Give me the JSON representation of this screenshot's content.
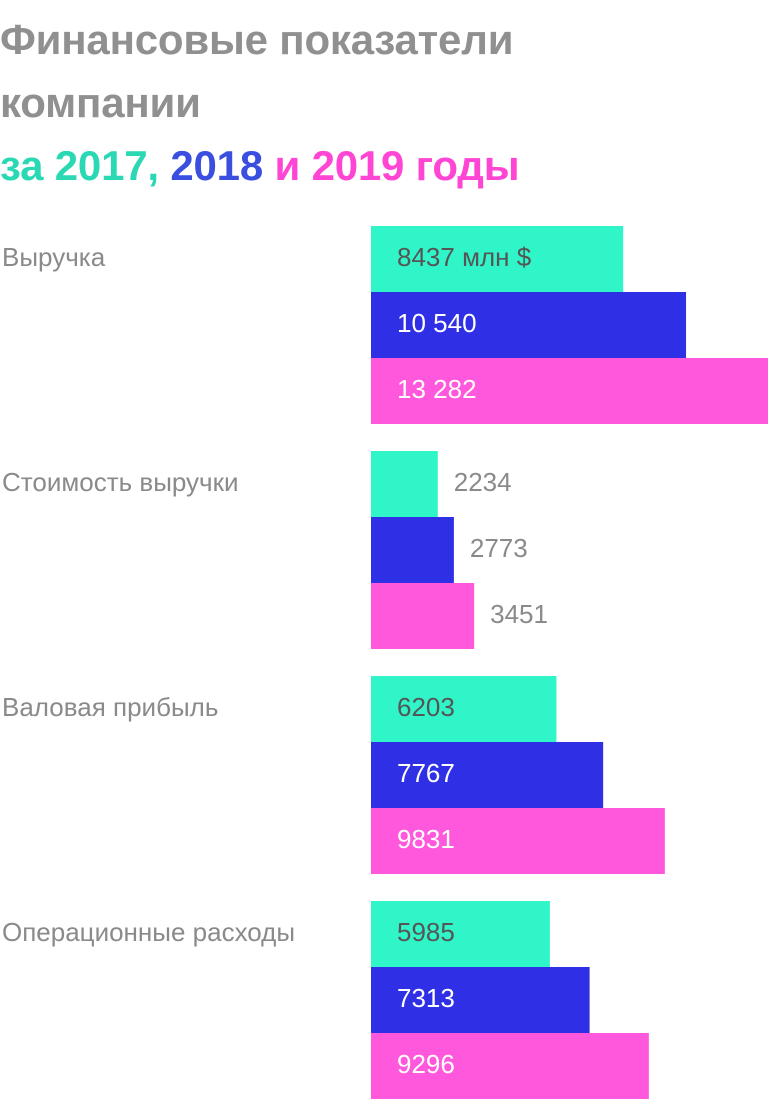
{
  "title": {
    "line1": "Финансовые показатели",
    "line2": "компании",
    "line3_prefix": "за ",
    "year1": "2017,",
    "year2": "2018",
    "line3_mid": " и ",
    "year3": "2019 годы"
  },
  "chart_data": {
    "type": "bar",
    "orientation": "horizontal",
    "unit_label": "8437 млн $",
    "colors": {
      "2017": "#30f5c8",
      "2018": "#2f2fe6",
      "2019": "#ff58dc",
      "category_text": "#8a8a8a",
      "value_inside_text": "#ffffff",
      "value_outside_text": "#8a8a8a",
      "first_value_text": "#555555"
    },
    "categories": [
      "Выручка",
      "Стоимость выручки",
      "Валовая прибыль",
      "Операционные расходы"
    ],
    "series": [
      {
        "name": "2017",
        "values": [
          8437,
          2234,
          6203,
          5985
        ],
        "labels": [
          "8437 млн $",
          "2234",
          "6203",
          "5985"
        ]
      },
      {
        "name": "2018",
        "values": [
          10540,
          2773,
          7767,
          7313
        ],
        "labels": [
          "10 540",
          "2773",
          "7767",
          "7313"
        ]
      },
      {
        "name": "2019",
        "values": [
          13282,
          3451,
          9831,
          9296
        ],
        "labels": [
          "13 282",
          "3451",
          "9831",
          "9296"
        ]
      }
    ],
    "xlim": [
      0,
      13282
    ]
  }
}
